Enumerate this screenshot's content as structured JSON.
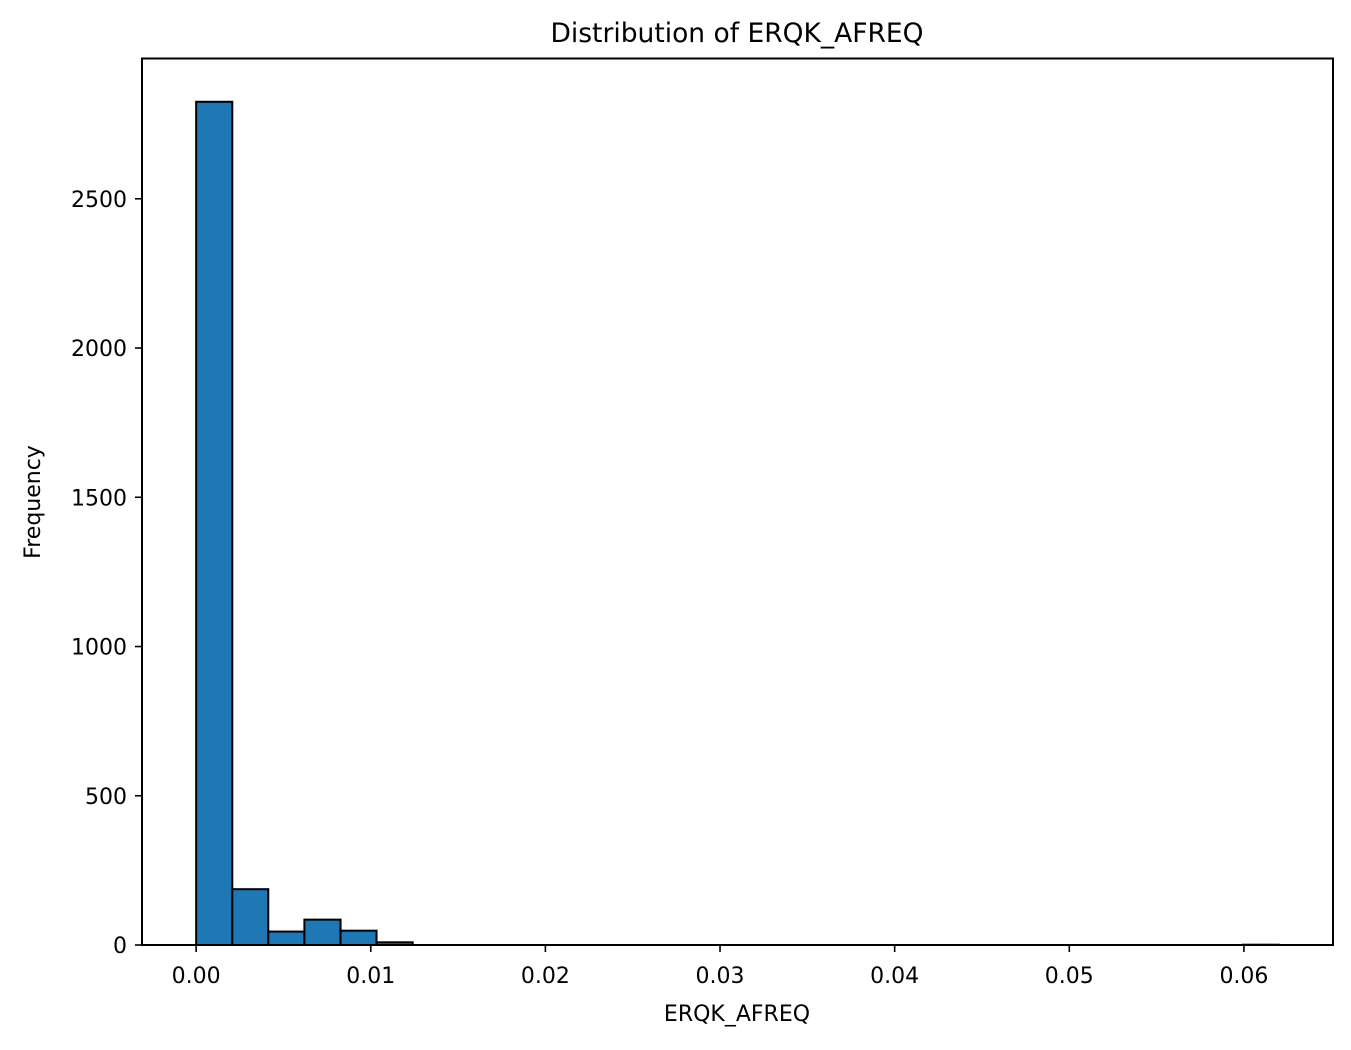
{
  "chart_data": {
    "type": "bar",
    "title": "Distribution of ERQK_AFREQ",
    "xlabel": "ERQK_AFREQ",
    "ylabel": "Frequency",
    "xlim": [
      -0.0031,
      0.0651
    ],
    "ylim": [
      0,
      2970
    ],
    "grid": false,
    "x_ticks": [
      0.0,
      0.01,
      0.02,
      0.03,
      0.04,
      0.05,
      0.06
    ],
    "x_tick_labels": [
      "0.00",
      "0.01",
      "0.02",
      "0.03",
      "0.04",
      "0.05",
      "0.06"
    ],
    "y_ticks": [
      0,
      500,
      1000,
      1500,
      2000,
      2500
    ],
    "y_tick_labels": [
      "0",
      "500",
      "1000",
      "1500",
      "2000",
      "2500"
    ],
    "bin_width": 0.00207,
    "bins": [
      {
        "start": 0.0,
        "end": 0.00207,
        "count": 2825
      },
      {
        "start": 0.00207,
        "end": 0.00413,
        "count": 187
      },
      {
        "start": 0.00413,
        "end": 0.0062,
        "count": 45
      },
      {
        "start": 0.0062,
        "end": 0.00827,
        "count": 85
      },
      {
        "start": 0.00827,
        "end": 0.01033,
        "count": 48
      },
      {
        "start": 0.01033,
        "end": 0.0124,
        "count": 9
      },
      {
        "start": 0.0124,
        "end": 0.01447,
        "count": 0
      },
      {
        "start": 0.01447,
        "end": 0.01653,
        "count": 0
      },
      {
        "start": 0.01653,
        "end": 0.0186,
        "count": 0
      },
      {
        "start": 0.0186,
        "end": 0.02067,
        "count": 0
      },
      {
        "start": 0.02067,
        "end": 0.02273,
        "count": 0
      },
      {
        "start": 0.02273,
        "end": 0.0248,
        "count": 0
      },
      {
        "start": 0.0248,
        "end": 0.02687,
        "count": 0
      },
      {
        "start": 0.02687,
        "end": 0.02893,
        "count": 0
      },
      {
        "start": 0.02893,
        "end": 0.031,
        "count": 0
      },
      {
        "start": 0.031,
        "end": 0.03307,
        "count": 0
      },
      {
        "start": 0.03307,
        "end": 0.03513,
        "count": 0
      },
      {
        "start": 0.03513,
        "end": 0.0372,
        "count": 0
      },
      {
        "start": 0.0372,
        "end": 0.03927,
        "count": 0
      },
      {
        "start": 0.03927,
        "end": 0.04133,
        "count": 0
      },
      {
        "start": 0.04133,
        "end": 0.0434,
        "count": 0
      },
      {
        "start": 0.0434,
        "end": 0.04547,
        "count": 0
      },
      {
        "start": 0.04547,
        "end": 0.04753,
        "count": 0
      },
      {
        "start": 0.04753,
        "end": 0.0496,
        "count": 0
      },
      {
        "start": 0.0496,
        "end": 0.05167,
        "count": 0
      },
      {
        "start": 0.05167,
        "end": 0.05373,
        "count": 0
      },
      {
        "start": 0.05373,
        "end": 0.0558,
        "count": 0
      },
      {
        "start": 0.0558,
        "end": 0.05787,
        "count": 0
      },
      {
        "start": 0.05787,
        "end": 0.05993,
        "count": 0
      },
      {
        "start": 0.05993,
        "end": 0.062,
        "count": 1
      }
    ],
    "colors": {
      "bar_fill": "#1f77b4",
      "bar_edge": "#000000",
      "axis": "#000000"
    }
  }
}
